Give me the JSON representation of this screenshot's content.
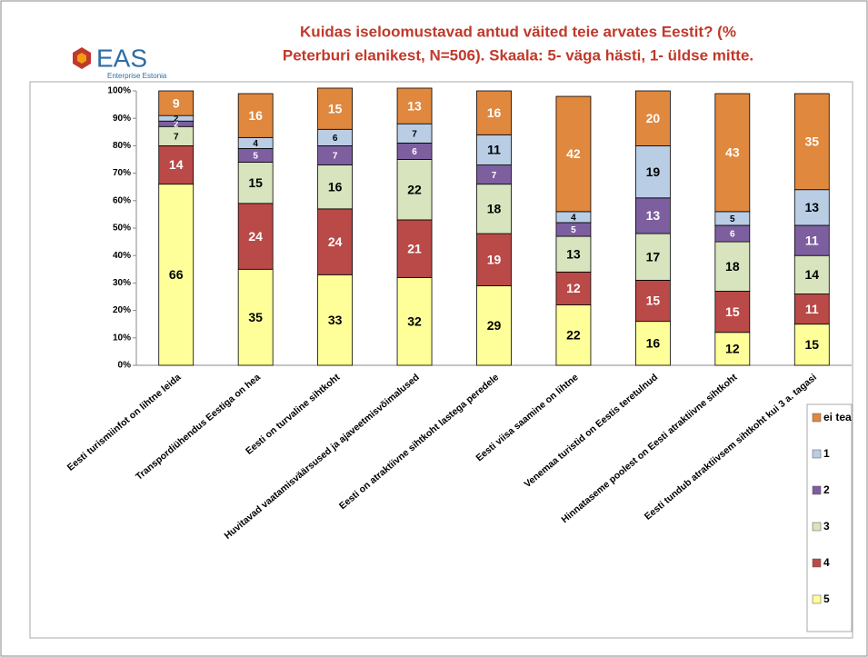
{
  "logo": {
    "name": "EAS",
    "subtitle": "Enterprise Estonia"
  },
  "chart_data": {
    "type": "stacked-bar",
    "title": [
      "Kuidas iseloomustavad antud väited teie arvates Eestit? (%",
      "Peterburi elanikest, N=506). Skaala: 5- väga hästi, 1- üldse mitte."
    ],
    "categories": [
      "Eesti turismiinfot on lihtne leida",
      "Transpordiühendus Eestiga on hea",
      "Eesti on turvaline sihtkoht",
      "Huvitavad vaatamisväärsused ja ajaveetmisvõimalused",
      "Eesti on atraktiivne sihtkoht lastega peredele",
      "Eesti viisa saamine on lihtne",
      "Venemaa turistid on Eestis teretulnud",
      "Hinnataseme poolest on Eesti atraktiivne sihtkoht",
      "Eesti tundub atraktiivsem sihtkoht kui 3 a. tagasi"
    ],
    "series": [
      {
        "name": "5",
        "color": "#ffff99",
        "values": [
          66,
          35,
          33,
          32,
          29,
          22,
          16,
          12,
          15
        ]
      },
      {
        "name": "4",
        "color": "#b94a48",
        "values": [
          14,
          24,
          24,
          21,
          19,
          12,
          15,
          15,
          11
        ]
      },
      {
        "name": "3",
        "color": "#d7e4bd",
        "values": [
          7,
          15,
          16,
          22,
          18,
          13,
          17,
          18,
          14
        ]
      },
      {
        "name": "2",
        "color": "#7d5fa0",
        "values": [
          2,
          5,
          7,
          6,
          7,
          5,
          13,
          6,
          11
        ]
      },
      {
        "name": "1",
        "color": "#b9cde5",
        "values": [
          2,
          4,
          6,
          7,
          11,
          4,
          19,
          5,
          13
        ]
      },
      {
        "name": "ei tea",
        "color": "#e0883e",
        "values": [
          9,
          16,
          15,
          13,
          16,
          42,
          20,
          43,
          35
        ]
      }
    ],
    "ylim": [
      0,
      100
    ],
    "yticks": [
      {
        "value": 0,
        "label": "0%"
      },
      {
        "value": 10,
        "label": "10%"
      },
      {
        "value": 20,
        "label": "20%"
      },
      {
        "value": 30,
        "label": "30%"
      },
      {
        "value": 40,
        "label": "40%"
      },
      {
        "value": 50,
        "label": "50%"
      },
      {
        "value": 60,
        "label": "60%"
      },
      {
        "value": 70,
        "label": "70%"
      },
      {
        "value": 80,
        "label": "80%"
      },
      {
        "value": 90,
        "label": "90%"
      },
      {
        "value": 100,
        "label": "100%"
      }
    ],
    "legend": "right"
  }
}
